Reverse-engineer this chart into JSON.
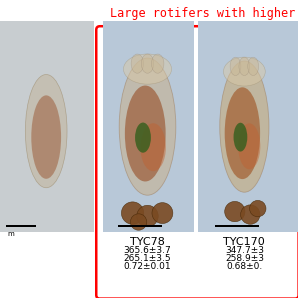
{
  "title": "Large rotifers with higher pe",
  "title_color": "#ff0000",
  "title_fontsize": 8.5,
  "background_color": "#ffffff",
  "border_color": "#ff0000",
  "border_linewidth": 1.8,
  "left_panel_bg": "#c8cdd0",
  "middle_panel_bg": "#b8c8d8",
  "right_panel_bg": "#b8c8d8",
  "label1": "TYC78",
  "label1_line1": "365.6±3.7",
  "label1_line2": "265.1±3.5",
  "label1_line3": "0.72±0.01",
  "label2": "TYC170",
  "label2_line1": "347.7±3",
  "label2_line2": "258.9±3",
  "label2_line3": "0.68±0.",
  "text_fontsize": 6.5,
  "label_fontsize": 8.0
}
